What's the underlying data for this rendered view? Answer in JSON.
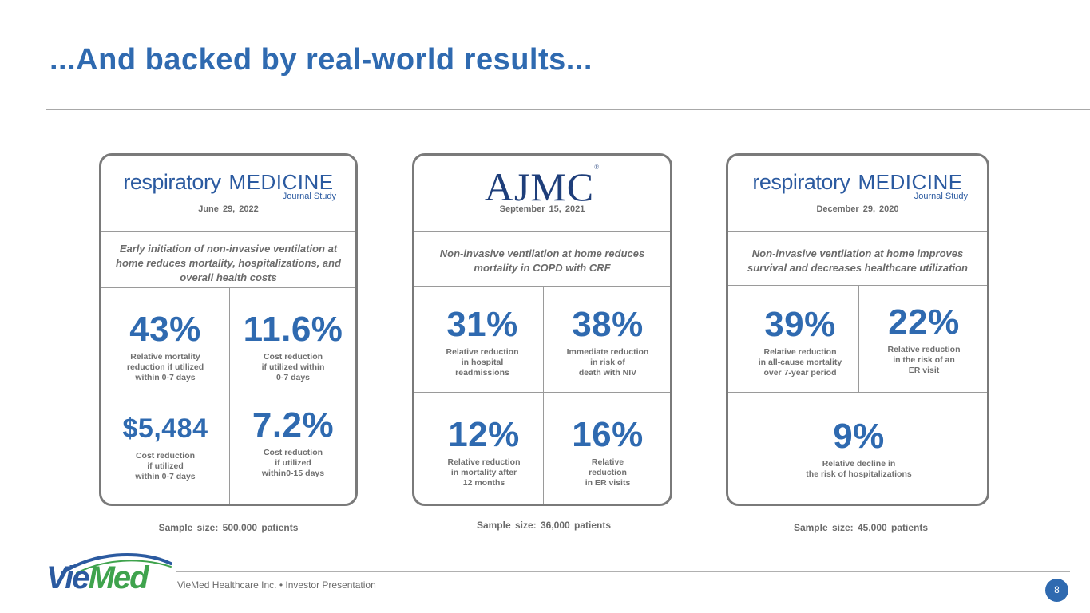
{
  "title": "...And backed by real-world results...",
  "cards": [
    {
      "journal_word": "respiratory",
      "journal_caps": "MEDICINE",
      "journal_sub": "Journal Study",
      "date": "June 29, 2022",
      "headline": "Early initiation of non-invasive ventilation at home reduces mortality, hospitalizations, and overall health costs",
      "stats": [
        {
          "value": "43%",
          "label": "Relative mortality\nreduction if utilized\nwithin 0-7 days"
        },
        {
          "value": "11.6%",
          "label": "Cost reduction\nif utilized within\n0-7 days"
        },
        {
          "value": "$5,484",
          "label": "Cost reduction\nif utilized\nwithin 0-7 days"
        },
        {
          "value": "7.2%",
          "label": "Cost reduction\nif utilized\nwithin0-15 days"
        }
      ],
      "sample": "Sample size: 500,000 patients"
    },
    {
      "logo": "AJMC",
      "date": "September 15, 2021",
      "headline": "Non-invasive ventilation at home reduces mortality in COPD with CRF",
      "stats": [
        {
          "value": "31%",
          "label": "Relative reduction\nin hospital\nreadmissions"
        },
        {
          "value": "38%",
          "label": "Immediate reduction\nin risk of\ndeath with NIV"
        },
        {
          "value": "12%",
          "label": "Relative reduction\nin mortality after\n12 months"
        },
        {
          "value": "16%",
          "label": "Relative\nreduction\nin ER visits"
        }
      ],
      "sample": "Sample size: 36,000 patients"
    },
    {
      "journal_word": "respiratory",
      "journal_caps": "MEDICINE",
      "journal_sub": "Journal Study",
      "date": "December 29, 2020",
      "headline": "Non-invasive ventilation at home improves survival and decreases healthcare utilization",
      "stats": [
        {
          "value": "39%",
          "label": "Relative reduction\nin all-cause mortality\nover 7-year period"
        },
        {
          "value": "22%",
          "label": "Relative reduction\nin the risk of an\nER visit"
        },
        {
          "value": "9%",
          "label": "Relative decline in\nthe risk of hospitalizations"
        }
      ],
      "sample": "Sample size: 45,000 patients"
    }
  ],
  "footer": {
    "logo_part1": "Vie",
    "logo_part2": "Med",
    "text": "VieMed Healthcare Inc. • Investor Presentation",
    "page": "8"
  },
  "colors": {
    "accent": "#2f6ab0",
    "brand_green": "#3fa34d",
    "text_gray": "#6b6b6b"
  }
}
